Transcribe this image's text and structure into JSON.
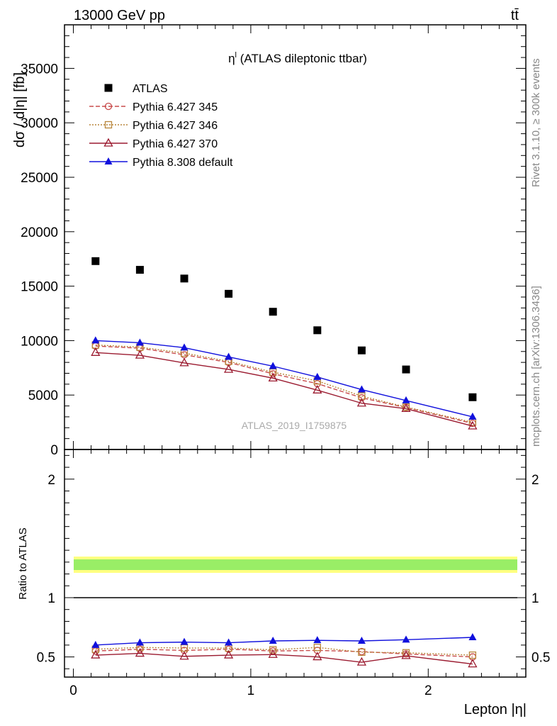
{
  "header": {
    "left": "13000 GeV pp",
    "right": "tt̄"
  },
  "side_labels": {
    "rivet": "Rivet 3.1.10, ≥ 300k events",
    "mcplots": "mcplots.cern.ch [arXiv:1306.3436]"
  },
  "chart_data": {
    "type": "scatter",
    "title": "η (ATLAS dileptonic ttbar)",
    "title_superscript": "l",
    "watermark": "ATLAS_2019_I1759875",
    "xlabel": "Lepton |η|",
    "ylabel": "dσ / d|η| [fb]",
    "ratio_ylabel": "Ratio to ATLAS",
    "xlim": [
      -0.05,
      2.55
    ],
    "ylim": [
      0,
      39000
    ],
    "ratio_ylim": [
      0.33,
      2.25
    ],
    "x_ticks": [
      "0",
      "1",
      "2"
    ],
    "y_ticks": [
      "0",
      "5000",
      "10000",
      "15000",
      "20000",
      "25000",
      "30000",
      "35000"
    ],
    "ratio_y_ticks": [
      "0.5",
      "1",
      "2"
    ],
    "grid": false,
    "legend_placement": "top-left",
    "x": [
      0.125,
      0.375,
      0.625,
      0.875,
      1.125,
      1.375,
      1.625,
      1.875,
      2.25
    ],
    "series": [
      {
        "name": "ATLAS",
        "color": "#000000",
        "marker": "square",
        "values": [
          17300,
          16500,
          15700,
          14300,
          12650,
          10950,
          9100,
          7350,
          4800
        ],
        "ratio": [
          1,
          1,
          1,
          1,
          1,
          1,
          1,
          1,
          1
        ]
      },
      {
        "name": "Pythia 6.427 345",
        "color": "#c84b4b",
        "marker": "circle",
        "dash": "6,3",
        "values": [
          9500,
          9300,
          8700,
          8000,
          6950,
          6050,
          4750,
          3850,
          2400
        ],
        "ratio": [
          0.55,
          0.565,
          0.555,
          0.565,
          0.55,
          0.555,
          0.545,
          0.525,
          0.5
        ]
      },
      {
        "name": "Pythia 6.427 346",
        "color": "#b8863b",
        "marker": "square-open",
        "dash": "2,2",
        "values": [
          9600,
          9400,
          8850,
          8100,
          7100,
          6300,
          4900,
          3900,
          2500
        ],
        "ratio": [
          0.565,
          0.58,
          0.575,
          0.575,
          0.56,
          0.58,
          0.54,
          0.535,
          0.515
        ]
      },
      {
        "name": "Pythia 6.427 370",
        "color": "#9b1b30",
        "marker": "triangle-open",
        "dash": "",
        "values": [
          8900,
          8650,
          7950,
          7350,
          6550,
          5450,
          4250,
          3750,
          2150
        ],
        "ratio": [
          0.515,
          0.53,
          0.505,
          0.515,
          0.52,
          0.5,
          0.455,
          0.51,
          0.44
        ]
      },
      {
        "name": "Pythia 8.308 default",
        "color": "#1010dd",
        "marker": "triangle",
        "dash": "",
        "values": [
          10000,
          9800,
          9350,
          8500,
          7650,
          6650,
          5500,
          4500,
          3000
        ],
        "ratio": [
          0.6,
          0.62,
          0.625,
          0.62,
          0.635,
          0.64,
          0.635,
          0.645,
          0.665
        ]
      }
    ]
  }
}
